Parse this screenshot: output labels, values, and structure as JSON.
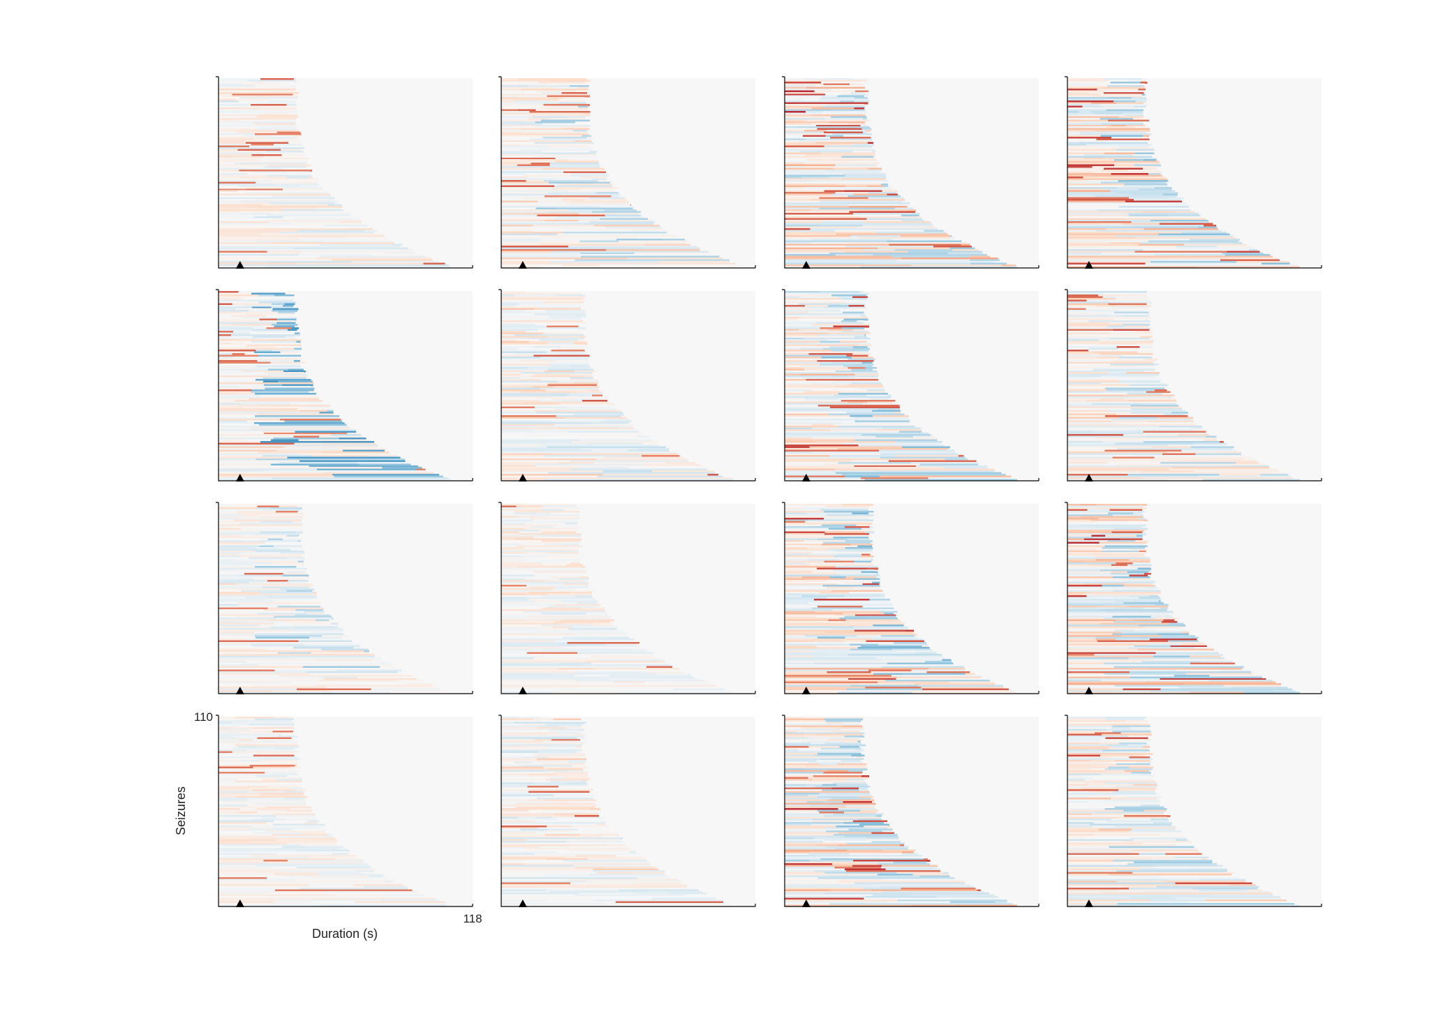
{
  "chart_data": {
    "type": "heatmap",
    "layout": {
      "rows": 4,
      "cols": 4
    },
    "xlabel": "Duration (s)",
    "ylabel": "Seizures",
    "xlim": [
      0,
      118
    ],
    "ylim": [
      0,
      110
    ],
    "x_ticks_shown": [
      "118"
    ],
    "y_ticks_shown": [
      "110"
    ],
    "onset_marker": "triangle",
    "onset_time_s": 10,
    "n_seizures": 110,
    "colormap": "diverging red-white-blue",
    "colors": {
      "background": "#f7f7f7",
      "positive": "#b2182b",
      "negative": "#2166ac",
      "neutral": "#f7f7f7",
      "marker": "#000000",
      "axis": "#000000"
    },
    "panels": [
      {
        "id": 1,
        "max_duration": 108,
        "base_duration": 36,
        "red": 0.35,
        "blue": 0.25
      },
      {
        "id": 2,
        "max_duration": 113,
        "base_duration": 40,
        "red": 0.45,
        "blue": 0.45
      },
      {
        "id": 3,
        "max_duration": 108,
        "base_duration": 38,
        "red": 0.85,
        "blue": 0.45
      },
      {
        "id": 4,
        "max_duration": 108,
        "base_duration": 36,
        "red": 0.75,
        "blue": 0.55
      },
      {
        "id": 5,
        "max_duration": 108,
        "base_duration": 36,
        "red": 0.4,
        "blue": 0.75
      },
      {
        "id": 6,
        "max_duration": 108,
        "base_duration": 38,
        "red": 0.45,
        "blue": 0.3
      },
      {
        "id": 7,
        "max_duration": 108,
        "base_duration": 38,
        "red": 0.65,
        "blue": 0.55
      },
      {
        "id": 8,
        "max_duration": 108,
        "base_duration": 38,
        "red": 0.5,
        "blue": 0.4
      },
      {
        "id": 9,
        "max_duration": 108,
        "base_duration": 38,
        "red": 0.3,
        "blue": 0.5
      },
      {
        "id": 10,
        "max_duration": 108,
        "base_duration": 36,
        "red": 0.3,
        "blue": 0.2
      },
      {
        "id": 11,
        "max_duration": 108,
        "base_duration": 40,
        "red": 0.7,
        "blue": 0.6
      },
      {
        "id": 12,
        "max_duration": 108,
        "base_duration": 36,
        "red": 0.85,
        "blue": 0.55
      },
      {
        "id": 13,
        "max_duration": 108,
        "base_duration": 36,
        "red": 0.3,
        "blue": 0.2
      },
      {
        "id": 14,
        "max_duration": 108,
        "base_duration": 38,
        "red": 0.4,
        "blue": 0.15
      },
      {
        "id": 15,
        "max_duration": 108,
        "base_duration": 36,
        "red": 0.85,
        "blue": 0.55
      },
      {
        "id": 16,
        "max_duration": 108,
        "base_duration": 38,
        "red": 0.55,
        "blue": 0.45
      }
    ]
  }
}
